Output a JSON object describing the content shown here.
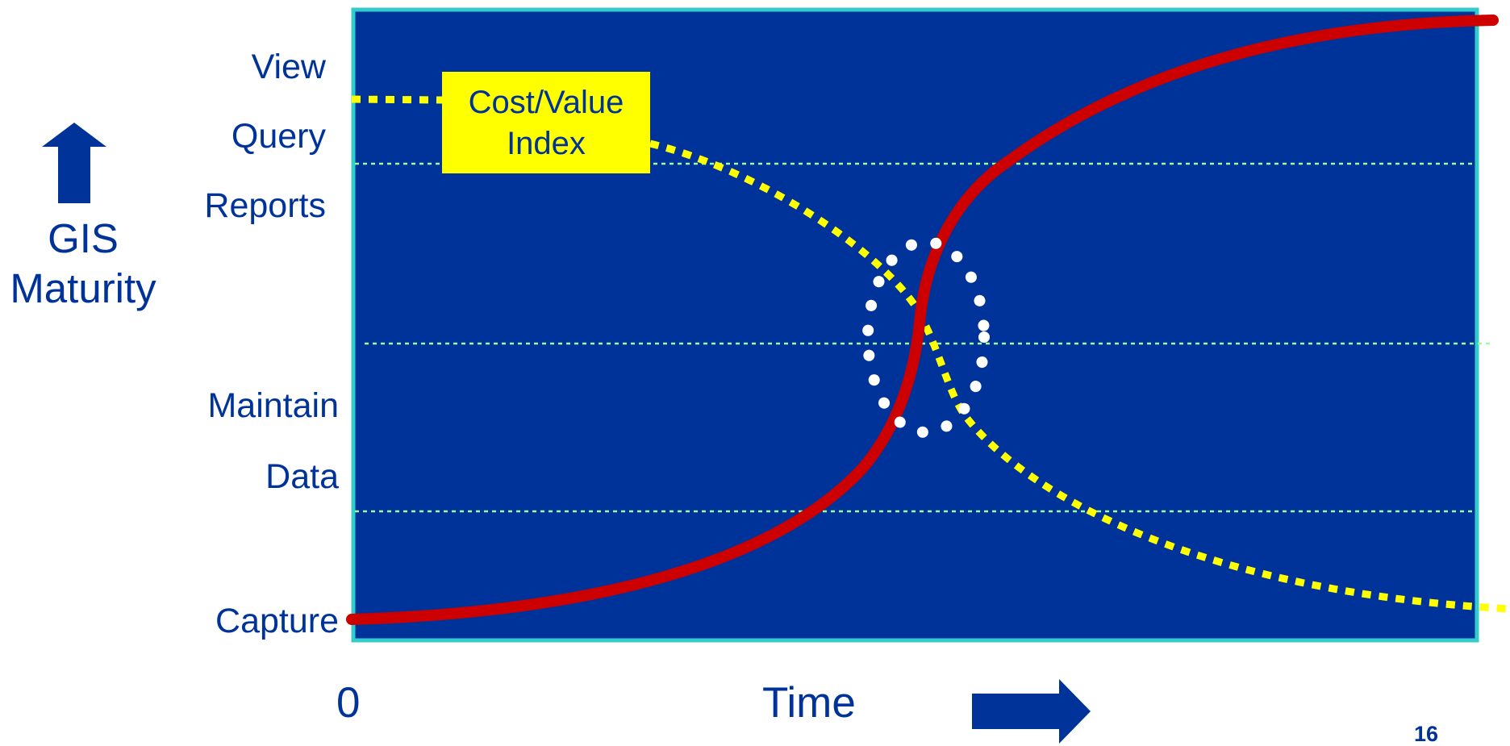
{
  "y_axis": {
    "title_line1": "GIS",
    "title_line2": "Maturity",
    "levels": [
      "View",
      "Query",
      "Reports",
      "Maintain",
      "Data",
      "Capture"
    ]
  },
  "x_axis": {
    "origin_label": "0",
    "title": "Time"
  },
  "callout": {
    "line1": "Cost/Value",
    "line2": "Index"
  },
  "page_number": "16",
  "colors": {
    "plot_background": "#003399",
    "plot_border": "#33cccc",
    "gridline": "#99ff99",
    "maturity_curve": "#cc0000",
    "cost_value_curve": "#ffff00",
    "crossover_ring": "#ffffff",
    "label_text": "#003399",
    "arrow": "#003399"
  },
  "icons": {
    "up_arrow": "up-arrow-icon",
    "right_arrow": "right-arrow-icon"
  }
}
